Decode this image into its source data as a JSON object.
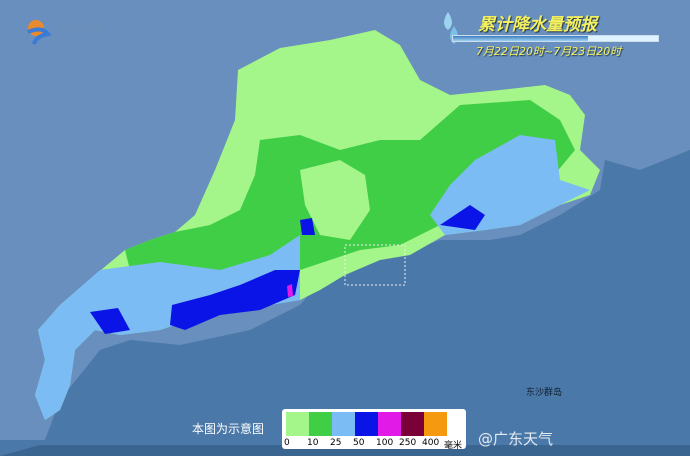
{
  "logo": {
    "text": "广东天气"
  },
  "title": "累计降水量预报",
  "subtitle": "7月22日20时~7月23日20时",
  "note": "本图为示意图",
  "legend": {
    "colors": [
      "#a4f58a",
      "#3fce45",
      "#7cbcf4",
      "#0a14e6",
      "#e21ae8",
      "#7a0038",
      "#f59a10"
    ],
    "ticks": [
      "0",
      "10",
      "25",
      "50",
      "100",
      "250",
      "400"
    ],
    "unit": "毫米"
  },
  "watermark": "@广东天气",
  "labels": {
    "dongsha": "东沙群岛"
  }
}
